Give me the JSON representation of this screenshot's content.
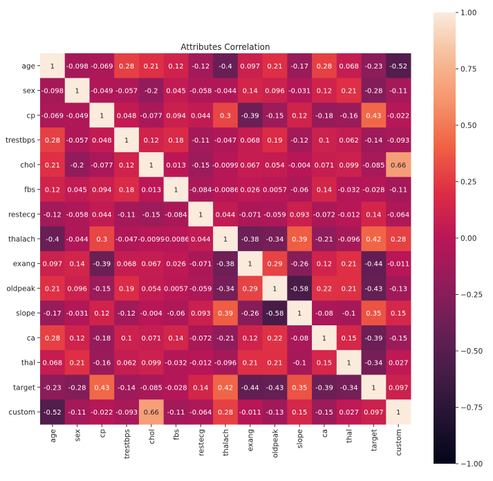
{
  "chart_data": {
    "type": "heatmap",
    "title": "Attributes Correlation",
    "labels": [
      "age",
      "sex",
      "cp",
      "trestbps",
      "chol",
      "fbs",
      "restecg",
      "thalach",
      "exang",
      "oldpeak",
      "slope",
      "ca",
      "thal",
      "target",
      "custom"
    ],
    "values": [
      [
        "1",
        "-0.098",
        "-0.069",
        "0.28",
        "0.21",
        "0.12",
        "-0.12",
        "-0.4",
        "0.097",
        "0.21",
        "-0.17",
        "0.28",
        "0.068",
        "-0.23",
        "-0.52"
      ],
      [
        "-0.098",
        "1",
        "-0.049",
        "-0.057",
        "-0.2",
        "0.045",
        "-0.058",
        "-0.044",
        "0.14",
        "0.096",
        "-0.031",
        "0.12",
        "0.21",
        "-0.28",
        "-0.11"
      ],
      [
        "-0.069",
        "-0.049",
        "1",
        "0.048",
        "-0.077",
        "0.094",
        "0.044",
        "0.3",
        "-0.39",
        "-0.15",
        "0.12",
        "-0.18",
        "-0.16",
        "0.43",
        "-0.022"
      ],
      [
        "0.28",
        "-0.057",
        "0.048",
        "1",
        "0.12",
        "0.18",
        "-0.11",
        "-0.047",
        "0.068",
        "0.19",
        "-0.12",
        "0.1",
        "0.062",
        "-0.14",
        "-0.093"
      ],
      [
        "0.21",
        "-0.2",
        "-0.077",
        "0.12",
        "1",
        "0.013",
        "-0.15",
        "-0.0099",
        "0.067",
        "0.054",
        "-0.004",
        "0.071",
        "0.099",
        "-0.085",
        "0.66"
      ],
      [
        "0.12",
        "0.045",
        "0.094",
        "0.18",
        "0.013",
        "1",
        "-0.084",
        "-0.0086",
        "0.026",
        "0.0057",
        "-0.06",
        "0.14",
        "-0.032",
        "-0.028",
        "-0.11"
      ],
      [
        "-0.12",
        "-0.058",
        "0.044",
        "-0.11",
        "-0.15",
        "-0.084",
        "1",
        "0.044",
        "-0.071",
        "-0.059",
        "0.093",
        "-0.072",
        "-0.012",
        "0.14",
        "-0.064"
      ],
      [
        "-0.4",
        "-0.044",
        "0.3",
        "-0.047",
        "-0.0099",
        "-0.0086",
        "0.044",
        "1",
        "-0.38",
        "-0.34",
        "0.39",
        "-0.21",
        "-0.096",
        "0.42",
        "0.28"
      ],
      [
        "0.097",
        "0.14",
        "-0.39",
        "0.068",
        "0.067",
        "0.026",
        "-0.071",
        "-0.38",
        "1",
        "0.29",
        "-0.26",
        "0.12",
        "0.21",
        "-0.44",
        "-0.011"
      ],
      [
        "0.21",
        "0.096",
        "-0.15",
        "0.19",
        "0.054",
        "0.0057",
        "-0.059",
        "-0.34",
        "0.29",
        "1",
        "-0.58",
        "0.22",
        "0.21",
        "-0.43",
        "-0.13"
      ],
      [
        "-0.17",
        "-0.031",
        "0.12",
        "-0.12",
        "-0.004",
        "-0.06",
        "0.093",
        "0.39",
        "-0.26",
        "-0.58",
        "1",
        "-0.08",
        "-0.1",
        "0.35",
        "0.15"
      ],
      [
        "0.28",
        "0.12",
        "-0.18",
        "0.1",
        "0.071",
        "0.14",
        "-0.072",
        "-0.21",
        "0.12",
        "0.22",
        "-0.08",
        "1",
        "0.15",
        "-0.39",
        "-0.15"
      ],
      [
        "0.068",
        "0.21",
        "-0.16",
        "0.062",
        "0.099",
        "-0.032",
        "-0.012",
        "-0.096",
        "0.21",
        "0.21",
        "-0.1",
        "0.15",
        "1",
        "-0.34",
        "0.027"
      ],
      [
        "-0.23",
        "-0.28",
        "0.43",
        "-0.14",
        "-0.085",
        "-0.028",
        "0.14",
        "0.42",
        "-0.44",
        "-0.43",
        "0.35",
        "-0.39",
        "-0.34",
        "1",
        "0.097"
      ],
      [
        "-0.52",
        "-0.11",
        "-0.022",
        "-0.093",
        "0.66",
        "-0.11",
        "-0.064",
        "0.28",
        "-0.011",
        "-0.13",
        "0.15",
        "-0.15",
        "0.027",
        "0.097",
        "1"
      ]
    ],
    "colorbar": {
      "range": [
        -1,
        1
      ],
      "ticks": [
        "1.00",
        "0.75",
        "0.50",
        "0.25",
        "0.00",
        "−0.25",
        "−0.50",
        "−0.75",
        "−1.00"
      ],
      "tick_values": [
        1,
        0.75,
        0.5,
        0.25,
        0,
        -0.25,
        -0.5,
        -0.75,
        -1
      ],
      "colormap": "rocket",
      "colors": [
        "#03051a",
        "#221331",
        "#451c47",
        "#691f55",
        "#921c5b",
        "#b91657",
        "#dd2c45",
        "#f06043",
        "#f5936a",
        "#f6bc99",
        "#faebdd"
      ]
    }
  }
}
